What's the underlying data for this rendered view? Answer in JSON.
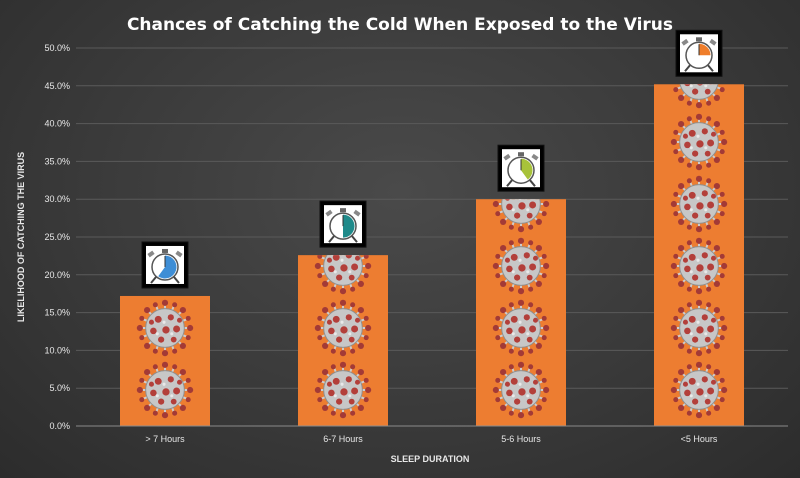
{
  "chart_data": {
    "type": "bar",
    "title": "Chances of Catching the Cold When Exposed to the Virus",
    "xlabel": "SLEEP DURATION",
    "ylabel": "LIKELIHOOD OF CATCHING THE VIRUS",
    "categories": [
      "> 7 Hours",
      "6-7 Hours",
      "5-6 Hours",
      "<5 Hours"
    ],
    "values": [
      17.2,
      22.6,
      30.0,
      45.2
    ],
    "ylim": [
      0,
      50
    ],
    "y_tick_step": 5,
    "y_tick_format": "percent_1dp",
    "grid": true,
    "bar_color": "#ed7d31",
    "virus_color": "#b0413e",
    "virus_spike_color": "#d8d8d8",
    "clock_hand_colors": [
      "#3e8ed6",
      "#1f8a8a",
      "#a8c23a",
      "#ef7d2a"
    ],
    "clock_fill_fractions": [
      0.6,
      0.5,
      0.4,
      0.25
    ]
  }
}
